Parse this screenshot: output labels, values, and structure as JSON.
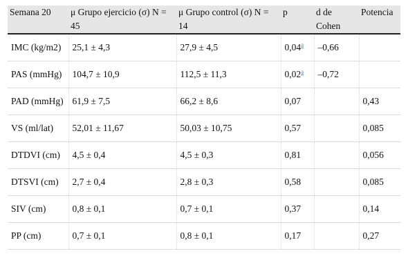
{
  "table": {
    "headers": [
      "Semana 20",
      "μ Grupo ejercicio (σ) N = 45",
      "μ Grupo control (σ) N = 14",
      "p",
      "d de Cohen",
      "Potencia"
    ],
    "rows": [
      {
        "label": "IMC (kg/m2)",
        "ejercicio": "25,1 ± 4,3",
        "control": "27,9 ± 4,5",
        "p": "0,04",
        "p_note": "a",
        "cohen": "–0,66",
        "potencia": ""
      },
      {
        "label": "PAS (mmHg)",
        "ejercicio": "104,7 ± 10,9",
        "control": "112,5 ± 11,3",
        "p": "0,02",
        "p_note": "a",
        "cohen": "–0,72",
        "potencia": ""
      },
      {
        "label": "PAD (mmHg)",
        "ejercicio": "61,9 ± 7,5",
        "control": "66,2 ± 8,6",
        "p": "0,07",
        "p_note": "",
        "cohen": "",
        "potencia": "0,43"
      },
      {
        "label": "VS (ml/lat)",
        "ejercicio": "52,01 ± 11,67",
        "control": "50,03 ± 10,75",
        "p": "0,57",
        "p_note": "",
        "cohen": "",
        "potencia": "0,085"
      },
      {
        "label": "DTDVI (cm)",
        "ejercicio": "4,5 ± 0,4",
        "control": "4,5 ± 0,3",
        "p": "0,81",
        "p_note": "",
        "cohen": "",
        "potencia": "0,056"
      },
      {
        "label": "DTSVI (cm)",
        "ejercicio": "2,7 ± 0,4",
        "control": "2,8 ± 0,3",
        "p": "0,58",
        "p_note": "",
        "cohen": "",
        "potencia": "0,085"
      },
      {
        "label": "SIV (cm)",
        "ejercicio": "0,8 ± 0,1",
        "control": "0,7 ± 0,1",
        "p": "0,37",
        "p_note": "",
        "cohen": "",
        "potencia": "0,14"
      },
      {
        "label": "PP (cm)",
        "ejercicio": "0,7 ± 0,1",
        "control": "0,8 ± 0,1",
        "p": "0,17",
        "p_note": "",
        "cohen": "",
        "potencia": "0,27"
      }
    ]
  }
}
